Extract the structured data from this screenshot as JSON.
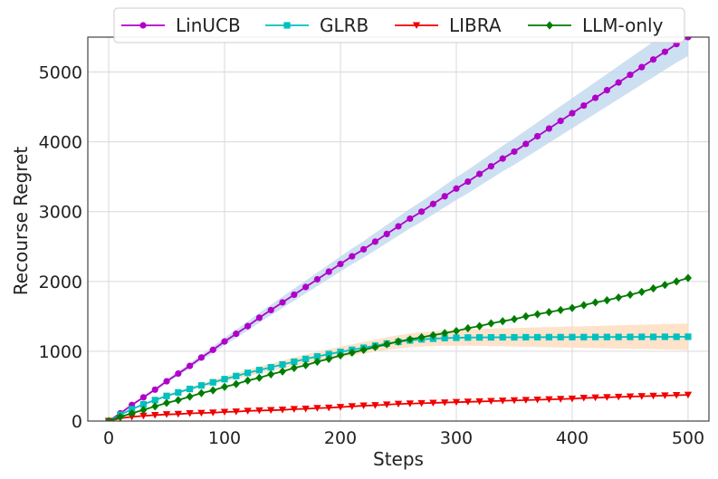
{
  "chart_data": {
    "type": "line",
    "title": "",
    "xlabel": "Steps",
    "ylabel": "Recourse Regret",
    "xlim": [
      -18,
      518
    ],
    "ylim": [
      0,
      5500
    ],
    "xticks": [
      0,
      100,
      200,
      300,
      400,
      500
    ],
    "yticks": [
      0,
      1000,
      2000,
      3000,
      4000,
      5000
    ],
    "grid": true,
    "legend_position": "top-center",
    "series": [
      {
        "name": "LinUCB",
        "color": "#b000c8",
        "marker": "circle",
        "x": [
          0,
          10,
          20,
          30,
          40,
          50,
          60,
          70,
          80,
          90,
          100,
          110,
          120,
          130,
          140,
          150,
          160,
          170,
          180,
          190,
          200,
          210,
          220,
          230,
          240,
          250,
          260,
          270,
          280,
          290,
          300,
          310,
          320,
          330,
          340,
          350,
          360,
          370,
          380,
          390,
          400,
          410,
          420,
          430,
          440,
          450,
          460,
          470,
          480,
          490,
          500
        ],
        "values": [
          0,
          110,
          230,
          340,
          450,
          570,
          680,
          790,
          910,
          1020,
          1140,
          1250,
          1360,
          1480,
          1590,
          1700,
          1810,
          1920,
          2030,
          2140,
          2250,
          2360,
          2460,
          2570,
          2680,
          2790,
          2900,
          3000,
          3110,
          3220,
          3330,
          3430,
          3540,
          3650,
          3760,
          3860,
          3970,
          4080,
          4190,
          4300,
          4410,
          4520,
          4630,
          4740,
          4850,
          4960,
          5070,
          5180,
          5290,
          5400,
          5500
        ],
        "band": {
          "color": "#bcd6ec",
          "spread_end": 270
        }
      },
      {
        "name": "GLRB",
        "color": "#00c0c0",
        "marker": "square",
        "x": [
          0,
          10,
          20,
          30,
          40,
          50,
          60,
          70,
          80,
          90,
          100,
          110,
          120,
          130,
          140,
          150,
          160,
          170,
          180,
          190,
          200,
          210,
          220,
          230,
          240,
          250,
          260,
          270,
          280,
          290,
          300,
          310,
          320,
          330,
          340,
          350,
          360,
          370,
          380,
          390,
          400,
          410,
          420,
          430,
          440,
          450,
          460,
          470,
          480,
          490,
          500
        ],
        "values": [
          0,
          90,
          170,
          240,
          300,
          360,
          410,
          460,
          510,
          555,
          600,
          645,
          690,
          730,
          770,
          810,
          850,
          890,
          925,
          960,
          990,
          1020,
          1050,
          1080,
          1110,
          1135,
          1155,
          1170,
          1180,
          1188,
          1193,
          1196,
          1198,
          1199,
          1200,
          1200,
          1201,
          1201,
          1202,
          1202,
          1203,
          1203,
          1204,
          1204,
          1205,
          1205,
          1206,
          1206,
          1207,
          1207,
          1208
        ],
        "band": {
          "color": "#fdd9b8",
          "spread_end": 190
        }
      },
      {
        "name": "LIBRA",
        "color": "#f00000",
        "marker": "triangle-down",
        "x": [
          0,
          10,
          20,
          30,
          40,
          50,
          60,
          70,
          80,
          90,
          100,
          110,
          120,
          130,
          140,
          150,
          160,
          170,
          180,
          190,
          200,
          210,
          220,
          230,
          240,
          250,
          260,
          270,
          280,
          290,
          300,
          310,
          320,
          330,
          340,
          350,
          360,
          370,
          380,
          390,
          400,
          410,
          420,
          430,
          440,
          450,
          460,
          470,
          480,
          490,
          500
        ],
        "values": [
          0,
          40,
          60,
          75,
          85,
          95,
          100,
          110,
          115,
          120,
          130,
          135,
          145,
          150,
          155,
          160,
          170,
          175,
          185,
          190,
          200,
          210,
          220,
          225,
          235,
          245,
          250,
          255,
          260,
          265,
          270,
          275,
          280,
          285,
          290,
          295,
          300,
          305,
          310,
          315,
          320,
          330,
          335,
          340,
          345,
          350,
          355,
          360,
          365,
          370,
          375
        ]
      },
      {
        "name": "LLM-only",
        "color": "#007c00",
        "marker": "diamond",
        "x": [
          0,
          10,
          20,
          30,
          40,
          50,
          60,
          70,
          80,
          90,
          100,
          110,
          120,
          130,
          140,
          150,
          160,
          170,
          180,
          190,
          200,
          210,
          220,
          230,
          240,
          250,
          260,
          270,
          280,
          290,
          300,
          310,
          320,
          330,
          340,
          350,
          360,
          370,
          380,
          390,
          400,
          410,
          420,
          430,
          440,
          450,
          460,
          470,
          480,
          490,
          500
        ],
        "values": [
          0,
          60,
          110,
          160,
          210,
          260,
          300,
          350,
          400,
          440,
          490,
          530,
          580,
          620,
          670,
          710,
          760,
          800,
          850,
          890,
          940,
          980,
          1020,
          1060,
          1100,
          1140,
          1170,
          1200,
          1230,
          1260,
          1290,
          1330,
          1360,
          1400,
          1430,
          1460,
          1500,
          1530,
          1560,
          1590,
          1620,
          1660,
          1700,
          1730,
          1770,
          1810,
          1850,
          1900,
          1950,
          2000,
          2050
        ]
      }
    ]
  },
  "colors": {
    "grid": "#d9d9d9",
    "axis": "#444444",
    "background": "#ffffff"
  }
}
